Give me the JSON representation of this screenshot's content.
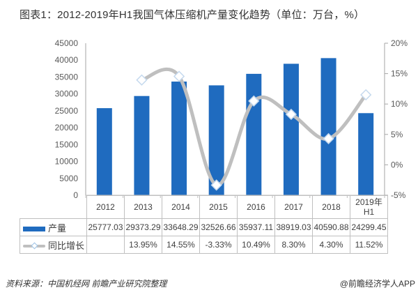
{
  "title": "图表1：2012-2019年H1我国气体压缩机产量变化趋势（单位：万台，%）",
  "chart_data": {
    "type": "bar+line",
    "title": "图表1：2012-2019年H1我国气体压缩机产量变化趋势（单位：万台，%）",
    "categories": [
      "2012",
      "2013",
      "2014",
      "2015",
      "2016",
      "2017",
      "2018",
      "2019年 H1"
    ],
    "series": [
      {
        "name": "产量",
        "type": "bar",
        "axis": "left",
        "color": "#1f6bbf",
        "values": [
          25777.03,
          29373.29,
          33648.29,
          32526.66,
          35937.11,
          38919.03,
          40590.88,
          24299.45
        ],
        "labels": [
          "25777.03",
          "29373.29",
          "33648.29",
          "32526.66",
          "35937.11",
          "38919.03",
          "40590.88",
          "24299.45"
        ]
      },
      {
        "name": "同比增长",
        "type": "line",
        "axis": "right",
        "color": "#bfbfbf",
        "marker": "diamond",
        "values": [
          null,
          13.95,
          14.55,
          -3.33,
          10.49,
          8.3,
          4.3,
          11.52
        ],
        "labels": [
          "",
          "13.95%",
          "14.55%",
          "-3.33%",
          "10.49%",
          "8.30%",
          "4.30%",
          "11.52%"
        ]
      }
    ],
    "y_left": {
      "ylim": [
        0,
        45000
      ],
      "ticks": [
        "0",
        "5000",
        "10000",
        "15000",
        "20000",
        "25000",
        "30000",
        "35000",
        "40000",
        "45000"
      ]
    },
    "y_right": {
      "ylim": [
        -5,
        20
      ],
      "ticks": [
        "-5%",
        "0%",
        "5%",
        "10%",
        "15%",
        "20%"
      ]
    },
    "legend_position": "data-table",
    "grid": false
  },
  "table": {
    "header": [
      "2012",
      "2013",
      "2014",
      "2015",
      "2016",
      "2017",
      "2018"
    ],
    "header_last_line1": "2019年",
    "header_last_line2": "H1",
    "rows": [
      {
        "legend": "产量",
        "cells": [
          "25777.03",
          "29373.29",
          "33648.29",
          "32526.66",
          "35937.11",
          "38919.03",
          "40590.88",
          "24299.45"
        ]
      },
      {
        "legend": "同比增长",
        "cells": [
          "",
          "13.95%",
          "14.55%",
          "-3.33%",
          "10.49%",
          "8.30%",
          "4.30%",
          "11.52%"
        ]
      }
    ]
  },
  "footer": {
    "source": "资料来源：中国机经网 前瞻产业研究院整理",
    "credit": "@前瞻经济学人APP"
  }
}
